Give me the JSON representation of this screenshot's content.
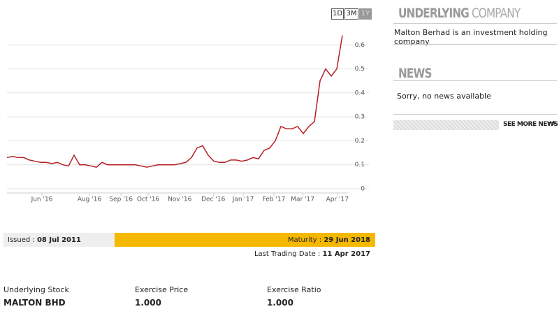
{
  "range_buttons": [
    "1D",
    "3M",
    "1Y"
  ],
  "chart_data": {
    "type": "line",
    "color": "#b52025",
    "values": [
      0.13,
      0.135,
      0.13,
      0.13,
      0.12,
      0.115,
      0.11,
      0.11,
      0.105,
      0.11,
      0.1,
      0.095,
      0.14,
      0.1,
      0.1,
      0.095,
      0.09,
      0.11,
      0.1,
      0.1,
      0.1,
      0.1,
      0.1,
      0.1,
      0.095,
      0.09,
      0.095,
      0.1,
      0.1,
      0.1,
      0.1,
      0.105,
      0.11,
      0.13,
      0.17,
      0.18,
      0.14,
      0.115,
      0.11,
      0.11,
      0.12,
      0.12,
      0.115,
      0.12,
      0.13,
      0.125,
      0.16,
      0.17,
      0.2,
      0.26,
      0.25,
      0.25,
      0.26,
      0.23,
      0.26,
      0.28,
      0.45,
      0.5,
      0.47,
      0.5,
      0.64
    ],
    "xlim": [
      0,
      60
    ],
    "xticks": [
      {
        "value": 6.25,
        "label": "Jun '16"
      },
      {
        "value": 14.75,
        "label": "Aug '16"
      },
      {
        "value": 20.4,
        "label": "Sep '16"
      },
      {
        "value": 25.25,
        "label": "Oct '16"
      },
      {
        "value": 30.9,
        "label": "Nov '16"
      },
      {
        "value": 36.9,
        "label": "Dec '16"
      },
      {
        "value": 42.25,
        "label": "Jan '17"
      },
      {
        "value": 47.75,
        "label": "Feb '17"
      },
      {
        "value": 52.9,
        "label": "Mar '17"
      },
      {
        "value": 59.1,
        "label": "Apr '17"
      }
    ],
    "ylim": [
      0,
      0.7
    ],
    "yticks": [
      0,
      0.1,
      0.2,
      0.3,
      0.4,
      0.5,
      0.6
    ],
    "grid": true
  },
  "underlying_company": {
    "title_bold": "UNDERLYING",
    "title_rest": "COMPANY",
    "text": "Malton Berhad is an investment holding company"
  },
  "news": {
    "title": "NEWS",
    "text": "Sorry, no news available",
    "link": "SEE MORE NEWS"
  },
  "dates": {
    "issued_label": "Issued :",
    "issued": "08 Jul 2011",
    "maturity_label": "Maturity :",
    "maturity": "29 Jun 2018",
    "last_trading_label": "Last Trading Date :",
    "last_trading": "11 Apr 2017"
  },
  "details": [
    {
      "label": "Underlying Stock",
      "value": "MALTON BHD"
    },
    {
      "label": "Exercise Price",
      "value": "1.000"
    },
    {
      "label": "Exercise Ratio",
      "value": "1.000"
    }
  ]
}
